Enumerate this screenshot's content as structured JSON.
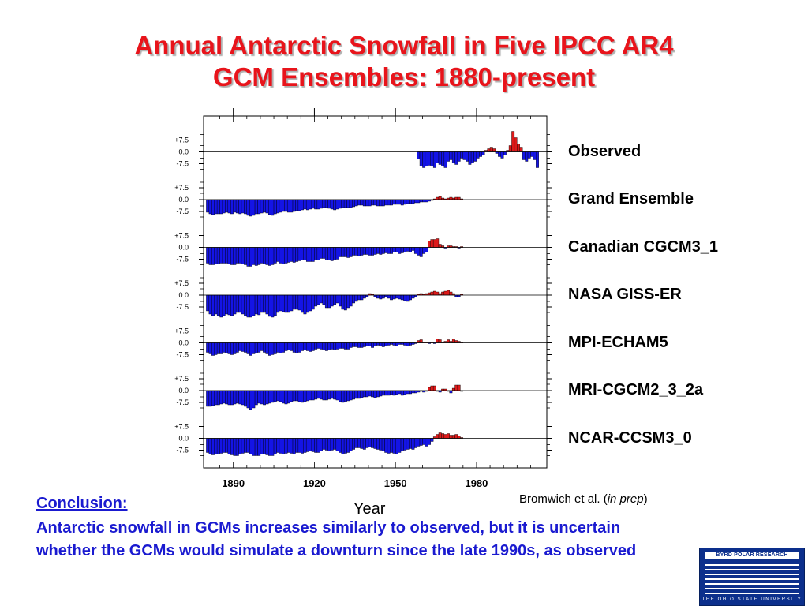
{
  "title_lines": [
    "Annual Antarctic Snowfall in Five IPCC AR4",
    "GCM Ensembles: 1880-present"
  ],
  "conclusion": {
    "heading": "Conclusion:",
    "text": "Antarctic snowfall in GCMs increases similarly to observed, but it is uncertain whether the GCMs would simulate a downturn since the late 1990s, as observed"
  },
  "credit": {
    "prefix": "Bromwich et al. (",
    "italic": "in prep",
    "suffix": ")"
  },
  "logo": {
    "top_text": "BYRD POLAR RESEARCH CENTER",
    "bottom_text": "THE OHIO STATE UNIVERSITY",
    "color": "#0c2f8c"
  },
  "chart_data": {
    "type": "bar",
    "xlabel": "Year",
    "xlim": [
      1879,
      2006
    ],
    "x_ticks": [
      1890,
      1920,
      1950,
      1980
    ],
    "ylim": [
      -12,
      12
    ],
    "y_ticks": [
      "+7.5",
      "0.0",
      "-7.5"
    ],
    "y_tick_values": [
      7.5,
      0,
      -7.5
    ],
    "colors": {
      "positive": "#dd1a1a",
      "negative": "#1414e6",
      "title": "#e8141b",
      "conclusion": "#1a1ad0"
    },
    "series": [
      {
        "name": "Observed",
        "start_year": 1958,
        "values": [
          -4.5,
          -9,
          -10,
          -9,
          -8.5,
          -9,
          -10,
          -7,
          -8,
          -9,
          -10,
          -6,
          -5,
          -7,
          -8,
          -6,
          -4,
          -5,
          -6,
          -8,
          -7,
          -6,
          -4,
          -3,
          -2,
          1,
          2,
          3,
          2,
          -1,
          -3,
          -4,
          -2,
          1,
          4,
          13,
          9,
          5,
          3,
          -5,
          -6,
          -4,
          -3,
          -5,
          -10
        ]
      },
      {
        "name": "Grand Ensemble",
        "start_year": 1880,
        "values": [
          -8,
          -9,
          -9.5,
          -9,
          -9,
          -9,
          -8.5,
          -8,
          -8.5,
          -9,
          -8,
          -8.5,
          -9,
          -8.5,
          -9,
          -10,
          -10.5,
          -10,
          -9,
          -9,
          -8.5,
          -8,
          -8.5,
          -9.5,
          -10,
          -9,
          -8.5,
          -8,
          -7.5,
          -7.5,
          -8,
          -8,
          -7.5,
          -7,
          -7,
          -6.5,
          -6,
          -6.5,
          -6,
          -5.5,
          -6,
          -6,
          -5.5,
          -5,
          -5,
          -5.5,
          -6,
          -6.5,
          -6,
          -5.5,
          -5,
          -5,
          -5,
          -5,
          -4.5,
          -4,
          -3.5,
          -3.5,
          -4,
          -4,
          -4,
          -3.5,
          -3.5,
          -4,
          -4,
          -4,
          -3.5,
          -3.5,
          -3.5,
          -3,
          -3,
          -3,
          -3.5,
          -3,
          -2.5,
          -2.5,
          -2.5,
          -2,
          -2,
          -1.5,
          -1.5,
          -1.5,
          -1,
          -0.5,
          0.5,
          1.5,
          2,
          1,
          0.5,
          1,
          1.5,
          1,
          1.5,
          1.5,
          0.5
        ]
      },
      {
        "name": "Canadian CGCM3_1",
        "start_year": 1880,
        "values": [
          -10,
          -11,
          -11,
          -10.5,
          -10.5,
          -10,
          -10,
          -10,
          -10.5,
          -11,
          -11,
          -10,
          -10,
          -10.5,
          -11,
          -12,
          -12,
          -11,
          -11.5,
          -11,
          -10,
          -10.5,
          -11,
          -11.5,
          -11,
          -10,
          -9,
          -10,
          -10.5,
          -10,
          -9.5,
          -9,
          -9.5,
          -9,
          -8.5,
          -8,
          -8,
          -9,
          -9,
          -9,
          -8,
          -8,
          -7,
          -7,
          -8,
          -8,
          -8.5,
          -8,
          -7.5,
          -6,
          -6,
          -6,
          -6.5,
          -6,
          -5,
          -5,
          -5.5,
          -5,
          -4.5,
          -4.5,
          -5,
          -5,
          -4.5,
          -4,
          -4.5,
          -4,
          -3.5,
          -4,
          -4,
          -3,
          -3,
          -4,
          -3.5,
          -3,
          -2.5,
          -3,
          -2,
          -4,
          -5,
          -6,
          -4,
          -3,
          4,
          5,
          5,
          5.5,
          2,
          1,
          -0.5,
          1,
          1,
          0.5,
          0.5,
          -0.5,
          0.5
        ]
      },
      {
        "name": "NASA GISS-ER",
        "start_year": 1880,
        "values": [
          -10,
          -12,
          -13,
          -12,
          -13,
          -14,
          -13,
          -12,
          -12.5,
          -13,
          -12,
          -11,
          -11,
          -12,
          -13,
          -14,
          -14,
          -13,
          -12,
          -12.5,
          -11,
          -11,
          -12,
          -13.5,
          -14,
          -13,
          -11,
          -10,
          -10.5,
          -11,
          -11,
          -10,
          -9,
          -9,
          -9.5,
          -11,
          -12,
          -11,
          -10,
          -9,
          -7,
          -6,
          -5,
          -6,
          -8,
          -8,
          -7,
          -6,
          -5,
          -7,
          -9,
          -9.5,
          -8,
          -7,
          -5,
          -4,
          -3,
          -3,
          -2,
          -1,
          1,
          0.5,
          -1,
          -2,
          -2.5,
          -2,
          -1,
          -2,
          -3,
          -2.5,
          -2,
          -2.5,
          -3,
          -3.5,
          -4,
          -3,
          -2,
          -1,
          0.5,
          1,
          0.5,
          1,
          1.5,
          2,
          2.5,
          2,
          1,
          2,
          2.5,
          3,
          2,
          1,
          -1,
          -1,
          0.5
        ]
      },
      {
        "name": "MPI-ECHAM5",
        "start_year": 1880,
        "values": [
          -6,
          -7,
          -8,
          -7.5,
          -7,
          -7,
          -6,
          -6.5,
          -7,
          -7.5,
          -7,
          -6,
          -5,
          -5.5,
          -6,
          -7,
          -8,
          -7,
          -6.5,
          -6,
          -5,
          -6,
          -7,
          -8,
          -7.5,
          -7,
          -6,
          -6.5,
          -6,
          -5,
          -4.5,
          -5,
          -6,
          -6.5,
          -6,
          -5,
          -4.5,
          -5,
          -5.5,
          -5,
          -4,
          -3.5,
          -4,
          -4.5,
          -5,
          -4.5,
          -4,
          -4.5,
          -4,
          -3.5,
          -3.5,
          -4,
          -4,
          -3,
          -2.5,
          -2.5,
          -3,
          -3,
          -2.5,
          -2,
          -2,
          -3,
          -2,
          -1.5,
          -2,
          -2.5,
          -2,
          -1.5,
          -1,
          -1.5,
          -2,
          -1,
          -1,
          -1.5,
          -2,
          -1.5,
          -1,
          -0.5,
          1.5,
          2,
          0.5,
          0.5,
          -0.5,
          0.5,
          -0.5,
          2.5,
          2,
          0.5,
          1,
          2,
          1,
          2.5,
          1.5,
          1,
          0.5
        ]
      },
      {
        "name": "MRI-CGCM2_3_2a",
        "start_year": 1880,
        "values": [
          -10,
          -10,
          -9.5,
          -9,
          -9,
          -8.5,
          -8,
          -8.5,
          -9,
          -9,
          -8.5,
          -8,
          -8.5,
          -9,
          -10,
          -11,
          -12,
          -11,
          -9,
          -8,
          -8.5,
          -9,
          -8.5,
          -8,
          -7.5,
          -7,
          -6.5,
          -7,
          -8,
          -8.5,
          -8,
          -7,
          -6.5,
          -6.5,
          -7,
          -7.5,
          -7,
          -6.5,
          -6,
          -6,
          -5.5,
          -5,
          -5.5,
          -6,
          -6,
          -5.5,
          -5,
          -5.5,
          -6,
          -7,
          -7.5,
          -7,
          -6.5,
          -6,
          -5.5,
          -5,
          -5,
          -4.5,
          -4,
          -4,
          -3.5,
          -4,
          -4.5,
          -4,
          -3.5,
          -3,
          -3,
          -3,
          -2.5,
          -3,
          -2.5,
          -2,
          -3,
          -2.5,
          -2,
          -2,
          -1.5,
          -1.5,
          -1,
          -0.5,
          -1,
          -0.5,
          2,
          3,
          3,
          -0.5,
          -1,
          1,
          1,
          -0.5,
          -1.5,
          1.5,
          3.5,
          3.5,
          -0.5
        ]
      },
      {
        "name": "NCAR-CCSM3_0",
        "start_year": 1880,
        "values": [
          -9,
          -10,
          -10.5,
          -10,
          -10,
          -9.5,
          -9,
          -9,
          -10,
          -10.5,
          -11,
          -11,
          -10,
          -9.5,
          -9,
          -9,
          -10,
          -11,
          -11,
          -11,
          -10,
          -10,
          -10.5,
          -11,
          -11,
          -10,
          -9,
          -9.5,
          -10,
          -9.5,
          -9,
          -9.5,
          -10,
          -9,
          -9,
          -9.5,
          -9,
          -8.5,
          -8,
          -8.5,
          -9,
          -9,
          -8,
          -7,
          -7.5,
          -8,
          -7.5,
          -7,
          -8,
          -9,
          -10,
          -9.5,
          -9,
          -8,
          -7,
          -6,
          -6,
          -6.5,
          -7,
          -6,
          -5.5,
          -6,
          -6.5,
          -7,
          -7.5,
          -8,
          -9,
          -9.5,
          -9,
          -9.5,
          -10,
          -9,
          -8,
          -7.5,
          -7,
          -6.5,
          -7,
          -6,
          -5,
          -4.5,
          -4,
          -5,
          -4,
          -2,
          1,
          2.5,
          3.5,
          3,
          2.5,
          3,
          2,
          2,
          2.5,
          1.5,
          0.5
        ]
      }
    ]
  }
}
